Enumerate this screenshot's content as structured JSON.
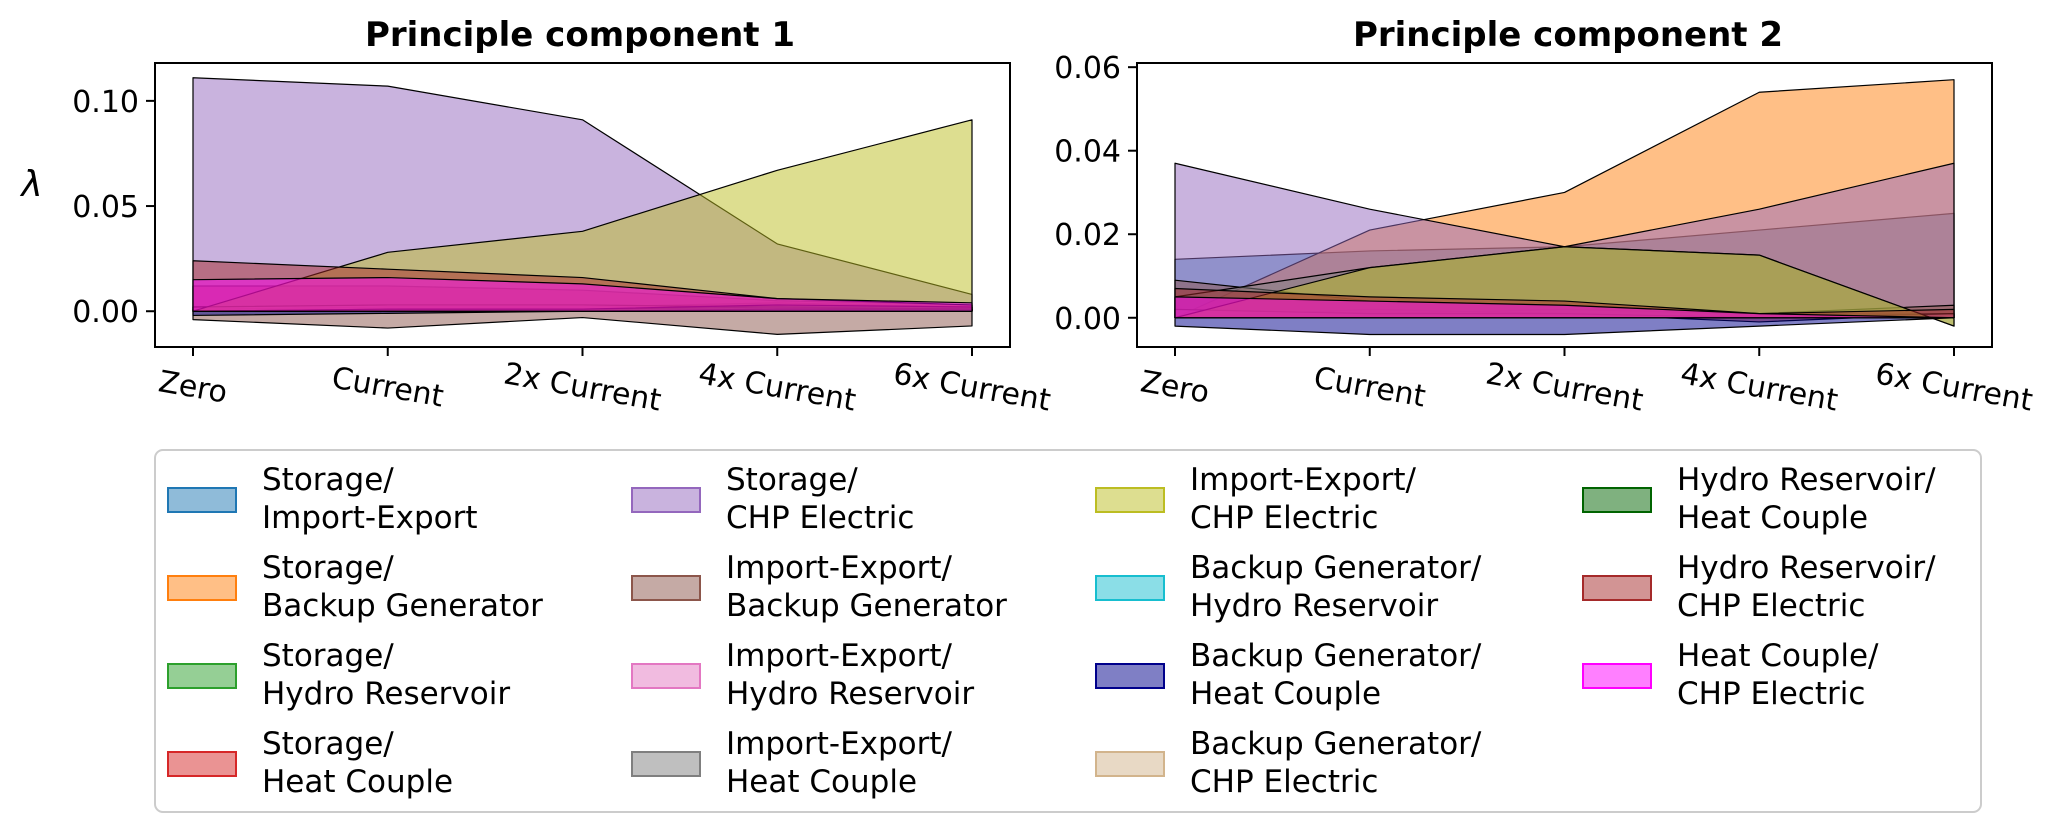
{
  "chart_data": {
    "type": "area",
    "ylabel": "λ",
    "categories": [
      "Zero",
      "Current",
      "2x Current",
      "4x Current",
      "6x Current"
    ],
    "legend_location": "bottom",
    "legend_entries": [
      {
        "line1": "Storage/",
        "line2": "Import-Export",
        "color": "#1f77b4"
      },
      {
        "line1": "Storage/",
        "line2": "Backup Generator",
        "color": "#ff7f0e"
      },
      {
        "line1": "Storage/",
        "line2": "Hydro Reservoir",
        "color": "#2ca02c"
      },
      {
        "line1": "Storage/",
        "line2": "Heat Couple",
        "color": "#d62728"
      },
      {
        "line1": "Storage/",
        "line2": "CHP Electric",
        "color": "#9467bd"
      },
      {
        "line1": "Import-Export/",
        "line2": "Backup Generator",
        "color": "#8c564b"
      },
      {
        "line1": "Import-Export/",
        "line2": "Hydro Reservoir",
        "color": "#e377c2"
      },
      {
        "line1": "Import-Export/",
        "line2": "Heat Couple",
        "color": "#7f7f7f"
      },
      {
        "line1": "Import-Export/",
        "line2": "CHP Electric",
        "color": "#bcbd22"
      },
      {
        "line1": "Backup Generator/",
        "line2": "Hydro Reservoir",
        "color": "#17becf"
      },
      {
        "line1": "Backup Generator/",
        "line2": "Heat Couple",
        "color": "#00008b"
      },
      {
        "line1": "Backup Generator/",
        "line2": "CHP Electric",
        "color": "#d2b48c"
      },
      {
        "line1": "Hydro Reservoir/",
        "line2": "Heat Couple",
        "color": "#006400"
      },
      {
        "line1": "Hydro Reservoir/",
        "line2": "CHP Electric",
        "color": "#a52a2a"
      },
      {
        "line1": "Heat Couple/",
        "line2": "CHP Electric",
        "color": "#ff00ff"
      }
    ],
    "panels": [
      {
        "title": "Principle component 1",
        "ylim": [
          -0.017,
          0.118
        ],
        "yticks": [
          0.0,
          0.05,
          0.1
        ],
        "ytick_labels": [
          "0.00",
          "0.05",
          "0.10"
        ],
        "series": [
          {
            "color": "#1f77b4",
            "values": [
              0.001,
              0.002,
              0.002,
              0.003,
              0.002
            ]
          },
          {
            "color": "#ff7f0e",
            "values": [
              0.0,
              0.0,
              0.0,
              0.0,
              0.0
            ]
          },
          {
            "color": "#2ca02c",
            "values": [
              0.0,
              0.001,
              0.002,
              0.004,
              0.002
            ]
          },
          {
            "color": "#d62728",
            "values": [
              0.012,
              0.012,
              0.01,
              0.005,
              0.003
            ]
          },
          {
            "color": "#9467bd",
            "values": [
              0.111,
              0.107,
              0.091,
              0.032,
              0.008
            ]
          },
          {
            "color": "#8c564b",
            "values": [
              -0.004,
              -0.008,
              -0.003,
              -0.011,
              -0.007
            ]
          },
          {
            "color": "#e377c2",
            "values": [
              0.002,
              0.003,
              0.003,
              0.002,
              0.001
            ]
          },
          {
            "color": "#7f7f7f",
            "values": [
              0.0,
              0.001,
              0.001,
              0.002,
              0.001
            ]
          },
          {
            "color": "#bcbd22",
            "values": [
              0.0,
              0.028,
              0.038,
              0.067,
              0.091
            ]
          },
          {
            "color": "#17becf",
            "values": [
              0.0,
              0.0,
              0.0,
              0.001,
              0.001
            ]
          },
          {
            "color": "#00008b",
            "values": [
              -0.002,
              -0.001,
              0.0,
              0.0,
              0.0
            ]
          },
          {
            "color": "#d2b48c",
            "values": [
              0.0,
              0.0,
              0.0,
              0.0,
              0.0
            ]
          },
          {
            "color": "#006400",
            "values": [
              0.0,
              0.001,
              0.001,
              0.003,
              0.002
            ]
          },
          {
            "color": "#a52a2a",
            "values": [
              0.024,
              0.02,
              0.016,
              0.006,
              0.003
            ]
          },
          {
            "color": "#ff00ff",
            "values": [
              0.015,
              0.016,
              0.013,
              0.006,
              0.004
            ]
          }
        ]
      },
      {
        "title": "Principle component 2",
        "ylim": [
          -0.007,
          0.061
        ],
        "yticks": [
          0.0,
          0.02,
          0.04,
          0.06
        ],
        "ytick_labels": [
          "0.00",
          "0.02",
          "0.04",
          "0.06"
        ],
        "series": [
          {
            "color": "#1f77b4",
            "values": [
              0.014,
              0.016,
              0.017,
              0.021,
              0.025
            ]
          },
          {
            "color": "#ff7f0e",
            "values": [
              0.0,
              0.021,
              0.03,
              0.054,
              0.057
            ]
          },
          {
            "color": "#2ca02c",
            "values": [
              0.0,
              0.001,
              0.002,
              0.001,
              0.001
            ]
          },
          {
            "color": "#d62728",
            "values": [
              0.0,
              0.002,
              0.001,
              -0.001,
              0.001
            ]
          },
          {
            "color": "#9467bd",
            "values": [
              0.037,
              0.026,
              0.017,
              0.026,
              0.037
            ]
          },
          {
            "color": "#8c564b",
            "values": [
              0.009,
              0.004,
              0.003,
              0.001,
              0.003
            ]
          },
          {
            "color": "#e377c2",
            "values": [
              0.002,
              0.001,
              0.001,
              0.0,
              0.001
            ]
          },
          {
            "color": "#7f7f7f",
            "values": [
              0.005,
              0.012,
              0.017,
              0.015,
              -0.002
            ]
          },
          {
            "color": "#bcbd22",
            "values": [
              0.0,
              0.012,
              0.017,
              0.015,
              -0.002
            ]
          },
          {
            "color": "#17becf",
            "values": [
              0.0,
              0.0,
              0.0,
              0.0,
              0.0
            ]
          },
          {
            "color": "#00008b",
            "values": [
              -0.002,
              -0.004,
              -0.004,
              -0.002,
              0.0
            ]
          },
          {
            "color": "#d2b48c",
            "values": [
              0.0,
              0.0,
              0.0,
              0.0,
              0.0
            ]
          },
          {
            "color": "#006400",
            "values": [
              0.0,
              0.0,
              0.0,
              0.0,
              0.0
            ]
          },
          {
            "color": "#a52a2a",
            "values": [
              0.007,
              0.005,
              0.004,
              0.001,
              0.002
            ]
          },
          {
            "color": "#ff00ff",
            "values": [
              0.005,
              0.004,
              0.003,
              0.001,
              0.0
            ]
          }
        ]
      }
    ]
  }
}
